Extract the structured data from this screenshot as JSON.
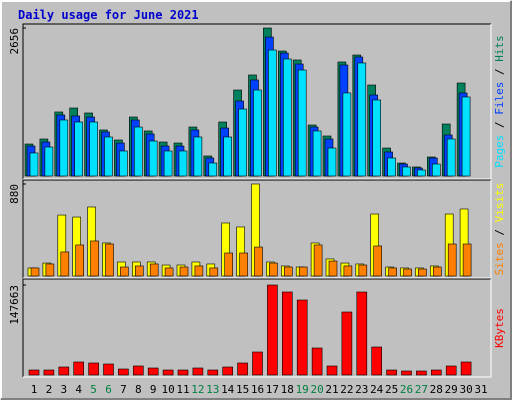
{
  "chart_data": [
    {
      "type": "bar",
      "title": "Daily usage for June 2021",
      "categories": [
        "1",
        "2",
        "3",
        "4",
        "5",
        "6",
        "7",
        "8",
        "9",
        "10",
        "11",
        "12",
        "13",
        "14",
        "15",
        "16",
        "17",
        "18",
        "19",
        "20",
        "21",
        "22",
        "23",
        "24",
        "25",
        "26",
        "27",
        "28",
        "29",
        "30",
        "31"
      ],
      "category_colors": [
        "#000000",
        "#000000",
        "#000000",
        "#000000",
        "#008040",
        "#008040",
        "#000000",
        "#000000",
        "#000000",
        "#000000",
        "#000000",
        "#008040",
        "#008040",
        "#000000",
        "#000000",
        "#000000",
        "#000000",
        "#000000",
        "#008040",
        "#008040",
        "#000000",
        "#000000",
        "#000000",
        "#000000",
        "#000000",
        "#008040",
        "#008040",
        "#000000",
        "#000000",
        "#000000",
        "#000000"
      ],
      "legend_separator": " / ",
      "ylim": [
        0,
        2656
      ],
      "yticks": [
        2656
      ],
      "series": [
        {
          "name": "Hits",
          "color": "#00805C",
          "values": [
            574,
            664,
            1149,
            1220,
            1131,
            826,
            646,
            1059,
            808,
            610,
            592,
            879,
            359,
            969,
            1543,
            1813,
            2656,
            2243,
            2082,
            915,
            718,
            2046,
            2171,
            1633,
            502,
            233,
            162,
            341,
            933,
            1669,
            0
          ]
        },
        {
          "name": "Files",
          "color": "#0040FF",
          "values": [
            538,
            610,
            1095,
            1077,
            1059,
            790,
            592,
            1005,
            754,
            538,
            538,
            826,
            323,
            861,
            1346,
            1723,
            2494,
            2207,
            2010,
            879,
            664,
            1992,
            2136,
            1454,
            431,
            215,
            144,
            323,
            736,
            1490,
            0
          ]
        },
        {
          "name": "Pages",
          "color": "#00E0FF",
          "values": [
            413,
            520,
            1005,
            969,
            969,
            700,
            449,
            879,
            628,
            449,
            449,
            700,
            233,
            700,
            1202,
            1543,
            2261,
            2100,
            1902,
            808,
            502,
            1490,
            2028,
            1364,
            323,
            162,
            108,
            215,
            664,
            1418,
            0
          ]
        }
      ]
    },
    {
      "type": "bar",
      "ylim": [
        0,
        880
      ],
      "yticks": [
        880
      ],
      "series": [
        {
          "name": "Visits",
          "color": "#FFFF00",
          "values": [
            77,
            124,
            583,
            564,
            660,
            316,
            134,
            134,
            134,
            105,
            105,
            134,
            115,
            507,
            469,
            880,
            134,
            96,
            86,
            316,
            163,
            124,
            115,
            593,
            86,
            77,
            77,
            96,
            593,
            641,
            0
          ]
        },
        {
          "name": "Sites",
          "color": "#FF8000",
          "values": [
            77,
            115,
            230,
            297,
            335,
            306,
            86,
            96,
            115,
            77,
            86,
            96,
            77,
            220,
            220,
            277,
            124,
            86,
            86,
            297,
            143,
            96,
            105,
            287,
            77,
            67,
            67,
            86,
            306,
            306,
            0
          ]
        }
      ]
    },
    {
      "type": "bar",
      "ylim": [
        0,
        147663
      ],
      "yticks": [
        147663
      ],
      "series": [
        {
          "name": "KBytes",
          "color": "#FF0000",
          "values": [
            8204,
            8204,
            13126,
            21329,
            19688,
            18048,
            9844,
            14766,
            11485,
            8204,
            8204,
            11485,
            8204,
            13126,
            19688,
            37736,
            147663,
            136178,
            123053,
            44299,
            14766,
            103364,
            136178,
            45940,
            8204,
            6563,
            6563,
            8204,
            14766,
            21329,
            0
          ]
        }
      ]
    }
  ]
}
